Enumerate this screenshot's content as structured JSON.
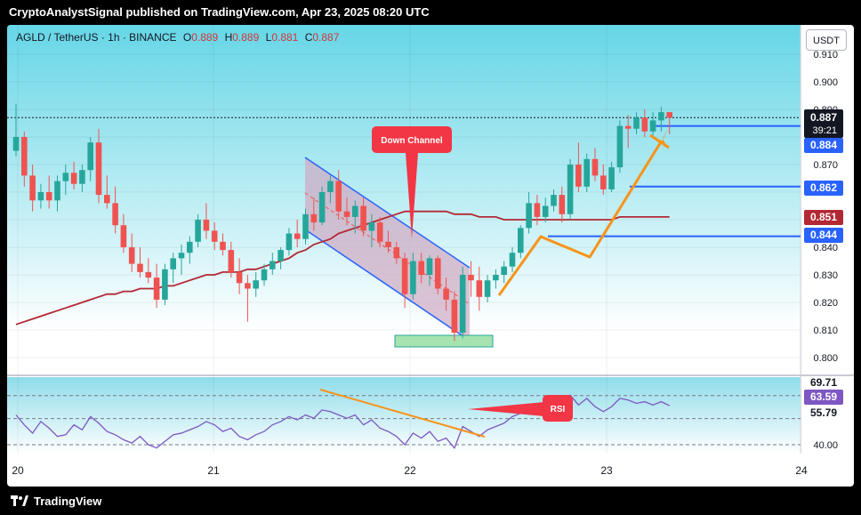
{
  "header": {
    "publisher_line": "CryptoAnalystSignal published on TradingView.com, Apr 23, 2025 08:20 UTC"
  },
  "footer": {
    "brand": "TradingView"
  },
  "symbol": {
    "name": "AGLD / TetherUS · 1h · BINANCE",
    "open_label": "O",
    "open": "0.889",
    "high_label": "H",
    "high": "0.889",
    "low_label": "L",
    "low": "0.881",
    "close_label": "C",
    "close": "0.887"
  },
  "currency_button": "USDT",
  "annotations": {
    "down_channel": "Down Channel",
    "rsi": "RSI"
  },
  "price_badges": {
    "last_price": "0.887",
    "countdown": "39:21",
    "level_1": "0.884",
    "level_2": "0.862",
    "ma_value": "0.851",
    "level_3": "0.844"
  },
  "rsi_badges": {
    "upper": "69.71",
    "current": "63.59",
    "middle": "55.79"
  },
  "colors": {
    "up": "#26a69a",
    "down": "#ef5350",
    "ma": "#b22833",
    "level": "#2962ff",
    "projection": "#f7931a",
    "panel_top": "#66d6e6",
    "panel_bottom": "#ffffff"
  },
  "chart_data": {
    "type": "candlestick",
    "price_axis": {
      "ticks": [
        "0.910",
        "0.900",
        "0.890",
        "0.880",
        "0.870",
        "0.860",
        "0.850",
        "0.840",
        "0.830",
        "0.820",
        "0.810",
        "0.800"
      ]
    },
    "time_axis": {
      "ticks": [
        "20",
        "21",
        "22",
        "23",
        "24"
      ]
    },
    "horizontal_levels": [
      0.884,
      0.862,
      0.844
    ],
    "moving_average_last": 0.851,
    "candles": [
      {
        "o": 0.875,
        "h": 0.892,
        "l": 0.873,
        "c": 0.88
      },
      {
        "o": 0.88,
        "h": 0.882,
        "l": 0.862,
        "c": 0.866
      },
      {
        "o": 0.866,
        "h": 0.87,
        "l": 0.853,
        "c": 0.857
      },
      {
        "o": 0.857,
        "h": 0.863,
        "l": 0.854,
        "c": 0.86
      },
      {
        "o": 0.86,
        "h": 0.866,
        "l": 0.854,
        "c": 0.857
      },
      {
        "o": 0.857,
        "h": 0.866,
        "l": 0.853,
        "c": 0.864
      },
      {
        "o": 0.864,
        "h": 0.87,
        "l": 0.859,
        "c": 0.867
      },
      {
        "o": 0.867,
        "h": 0.871,
        "l": 0.861,
        "c": 0.863
      },
      {
        "o": 0.863,
        "h": 0.87,
        "l": 0.86,
        "c": 0.868
      },
      {
        "o": 0.868,
        "h": 0.88,
        "l": 0.864,
        "c": 0.878
      },
      {
        "o": 0.878,
        "h": 0.883,
        "l": 0.856,
        "c": 0.859
      },
      {
        "o": 0.859,
        "h": 0.866,
        "l": 0.854,
        "c": 0.856
      },
      {
        "o": 0.856,
        "h": 0.862,
        "l": 0.845,
        "c": 0.848
      },
      {
        "o": 0.848,
        "h": 0.852,
        "l": 0.838,
        "c": 0.84
      },
      {
        "o": 0.84,
        "h": 0.845,
        "l": 0.831,
        "c": 0.834
      },
      {
        "o": 0.834,
        "h": 0.84,
        "l": 0.829,
        "c": 0.831
      },
      {
        "o": 0.831,
        "h": 0.836,
        "l": 0.827,
        "c": 0.829
      },
      {
        "o": 0.829,
        "h": 0.834,
        "l": 0.818,
        "c": 0.821
      },
      {
        "o": 0.821,
        "h": 0.834,
        "l": 0.819,
        "c": 0.832
      },
      {
        "o": 0.832,
        "h": 0.838,
        "l": 0.827,
        "c": 0.836
      },
      {
        "o": 0.836,
        "h": 0.841,
        "l": 0.83,
        "c": 0.838
      },
      {
        "o": 0.838,
        "h": 0.844,
        "l": 0.834,
        "c": 0.842
      },
      {
        "o": 0.842,
        "h": 0.852,
        "l": 0.84,
        "c": 0.85
      },
      {
        "o": 0.85,
        "h": 0.856,
        "l": 0.843,
        "c": 0.846
      },
      {
        "o": 0.846,
        "h": 0.849,
        "l": 0.839,
        "c": 0.842
      },
      {
        "o": 0.842,
        "h": 0.845,
        "l": 0.837,
        "c": 0.839
      },
      {
        "o": 0.839,
        "h": 0.842,
        "l": 0.829,
        "c": 0.831
      },
      {
        "o": 0.831,
        "h": 0.836,
        "l": 0.823,
        "c": 0.827
      },
      {
        "o": 0.827,
        "h": 0.83,
        "l": 0.813,
        "c": 0.825
      },
      {
        "o": 0.825,
        "h": 0.831,
        "l": 0.822,
        "c": 0.828
      },
      {
        "o": 0.828,
        "h": 0.834,
        "l": 0.826,
        "c": 0.832
      },
      {
        "o": 0.832,
        "h": 0.838,
        "l": 0.83,
        "c": 0.835
      },
      {
        "o": 0.835,
        "h": 0.84,
        "l": 0.832,
        "c": 0.839
      },
      {
        "o": 0.839,
        "h": 0.847,
        "l": 0.837,
        "c": 0.845
      },
      {
        "o": 0.845,
        "h": 0.85,
        "l": 0.84,
        "c": 0.843
      },
      {
        "o": 0.843,
        "h": 0.854,
        "l": 0.841,
        "c": 0.852
      },
      {
        "o": 0.852,
        "h": 0.858,
        "l": 0.846,
        "c": 0.849
      },
      {
        "o": 0.849,
        "h": 0.862,
        "l": 0.848,
        "c": 0.86
      },
      {
        "o": 0.86,
        "h": 0.866,
        "l": 0.856,
        "c": 0.864
      },
      {
        "o": 0.864,
        "h": 0.868,
        "l": 0.85,
        "c": 0.853
      },
      {
        "o": 0.853,
        "h": 0.858,
        "l": 0.848,
        "c": 0.851
      },
      {
        "o": 0.851,
        "h": 0.857,
        "l": 0.845,
        "c": 0.855
      },
      {
        "o": 0.855,
        "h": 0.858,
        "l": 0.844,
        "c": 0.846
      },
      {
        "o": 0.846,
        "h": 0.852,
        "l": 0.84,
        "c": 0.849
      },
      {
        "o": 0.849,
        "h": 0.851,
        "l": 0.84,
        "c": 0.842
      },
      {
        "o": 0.842,
        "h": 0.846,
        "l": 0.838,
        "c": 0.84
      },
      {
        "o": 0.84,
        "h": 0.842,
        "l": 0.834,
        "c": 0.836
      },
      {
        "o": 0.836,
        "h": 0.838,
        "l": 0.818,
        "c": 0.823
      },
      {
        "o": 0.823,
        "h": 0.838,
        "l": 0.821,
        "c": 0.835
      },
      {
        "o": 0.835,
        "h": 0.838,
        "l": 0.827,
        "c": 0.83
      },
      {
        "o": 0.83,
        "h": 0.837,
        "l": 0.826,
        "c": 0.836
      },
      {
        "o": 0.836,
        "h": 0.837,
        "l": 0.823,
        "c": 0.825
      },
      {
        "o": 0.825,
        "h": 0.829,
        "l": 0.817,
        "c": 0.821
      },
      {
        "o": 0.821,
        "h": 0.824,
        "l": 0.806,
        "c": 0.809
      },
      {
        "o": 0.809,
        "h": 0.833,
        "l": 0.807,
        "c": 0.83
      },
      {
        "o": 0.83,
        "h": 0.835,
        "l": 0.822,
        "c": 0.828
      },
      {
        "o": 0.828,
        "h": 0.833,
        "l": 0.817,
        "c": 0.822
      },
      {
        "o": 0.822,
        "h": 0.83,
        "l": 0.82,
        "c": 0.828
      },
      {
        "o": 0.828,
        "h": 0.832,
        "l": 0.825,
        "c": 0.83
      },
      {
        "o": 0.83,
        "h": 0.835,
        "l": 0.827,
        "c": 0.833
      },
      {
        "o": 0.833,
        "h": 0.84,
        "l": 0.831,
        "c": 0.838
      },
      {
        "o": 0.838,
        "h": 0.848,
        "l": 0.836,
        "c": 0.847
      },
      {
        "o": 0.847,
        "h": 0.86,
        "l": 0.845,
        "c": 0.856
      },
      {
        "o": 0.856,
        "h": 0.859,
        "l": 0.848,
        "c": 0.851
      },
      {
        "o": 0.851,
        "h": 0.858,
        "l": 0.849,
        "c": 0.855
      },
      {
        "o": 0.855,
        "h": 0.861,
        "l": 0.853,
        "c": 0.859
      },
      {
        "o": 0.859,
        "h": 0.862,
        "l": 0.849,
        "c": 0.852
      },
      {
        "o": 0.852,
        "h": 0.872,
        "l": 0.85,
        "c": 0.87
      },
      {
        "o": 0.87,
        "h": 0.878,
        "l": 0.86,
        "c": 0.862
      },
      {
        "o": 0.862,
        "h": 0.874,
        "l": 0.86,
        "c": 0.872
      },
      {
        "o": 0.872,
        "h": 0.876,
        "l": 0.864,
        "c": 0.866
      },
      {
        "o": 0.866,
        "h": 0.87,
        "l": 0.859,
        "c": 0.861
      },
      {
        "o": 0.861,
        "h": 0.871,
        "l": 0.86,
        "c": 0.869
      },
      {
        "o": 0.869,
        "h": 0.886,
        "l": 0.867,
        "c": 0.884
      },
      {
        "o": 0.884,
        "h": 0.888,
        "l": 0.876,
        "c": 0.883
      },
      {
        "o": 0.883,
        "h": 0.889,
        "l": 0.881,
        "c": 0.887
      },
      {
        "o": 0.887,
        "h": 0.89,
        "l": 0.88,
        "c": 0.882
      },
      {
        "o": 0.882,
        "h": 0.889,
        "l": 0.88,
        "c": 0.886
      },
      {
        "o": 0.886,
        "h": 0.891,
        "l": 0.882,
        "c": 0.889
      },
      {
        "o": 0.889,
        "h": 0.889,
        "l": 0.881,
        "c": 0.887
      }
    ],
    "moving_average": [
      0.812,
      0.813,
      0.814,
      0.815,
      0.816,
      0.817,
      0.818,
      0.819,
      0.82,
      0.821,
      0.822,
      0.823,
      0.823,
      0.824,
      0.824,
      0.825,
      0.825,
      0.825,
      0.826,
      0.826,
      0.827,
      0.828,
      0.829,
      0.83,
      0.83,
      0.831,
      0.831,
      0.831,
      0.832,
      0.832,
      0.833,
      0.834,
      0.835,
      0.836,
      0.838,
      0.839,
      0.841,
      0.842,
      0.843,
      0.845,
      0.846,
      0.847,
      0.848,
      0.849,
      0.85,
      0.851,
      0.852,
      0.853,
      0.853,
      0.853,
      0.853,
      0.853,
      0.853,
      0.852,
      0.852,
      0.852,
      0.851,
      0.851,
      0.851,
      0.85,
      0.85,
      0.85,
      0.85,
      0.85,
      0.85,
      0.85,
      0.85,
      0.85,
      0.85,
      0.85,
      0.85,
      0.85,
      0.85,
      0.851,
      0.851,
      0.851,
      0.851,
      0.851,
      0.851,
      0.851
    ],
    "rsi": {
      "levels": [
        69.71,
        55.79,
        40.0
      ],
      "ticks": [
        "40.00"
      ],
      "current": 63.59,
      "values": [
        58,
        52,
        47,
        54,
        50,
        45,
        46,
        52,
        49,
        57,
        53,
        48,
        46,
        43,
        41,
        45,
        40,
        38,
        42,
        46,
        47,
        49,
        51,
        54,
        52,
        48,
        50,
        45,
        43,
        46,
        48,
        52,
        54,
        57,
        55,
        58,
        56,
        61,
        60,
        58,
        56,
        58,
        52,
        55,
        50,
        48,
        45,
        40,
        47,
        44,
        48,
        42,
        44,
        38,
        51,
        48,
        45,
        49,
        51,
        53,
        57,
        59,
        62,
        60,
        63,
        65,
        62,
        70,
        64,
        68,
        63,
        60,
        63,
        68,
        67,
        65,
        66,
        64,
        66,
        63.59
      ]
    }
  }
}
